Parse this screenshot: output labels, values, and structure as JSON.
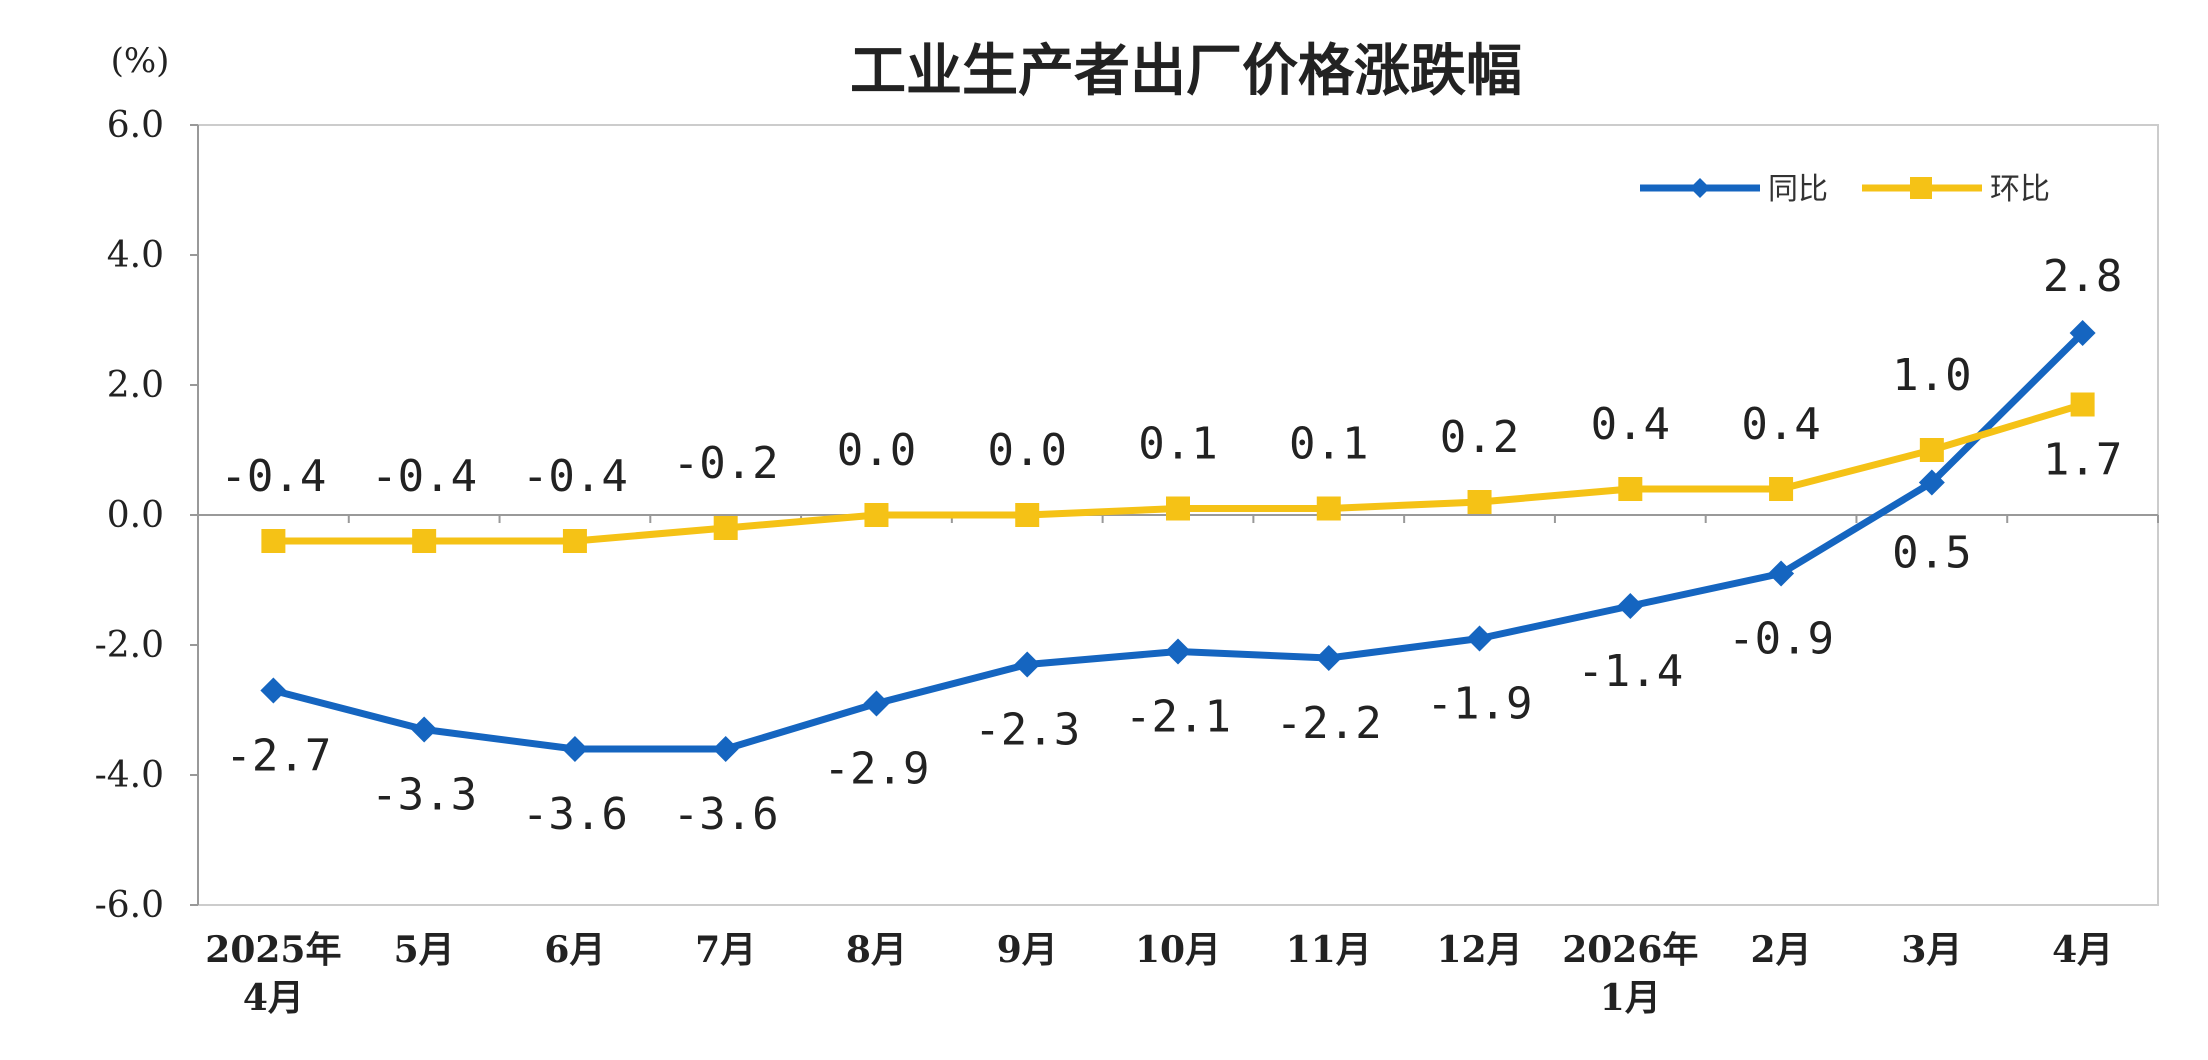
{
  "chart_data": {
    "type": "line",
    "title": "工业生产者出厂价格涨跌幅",
    "unit_label": "(%)",
    "ylim": [
      -6.0,
      6.0
    ],
    "yticks": [
      "6.0",
      "4.0",
      "2.0",
      "0.0",
      "-2.0",
      "-4.0",
      "-6.0"
    ],
    "ytick_values": [
      6,
      4,
      2,
      0,
      -2,
      -4,
      -6
    ],
    "categories": [
      [
        "2025年",
        "4月"
      ],
      [
        "5月"
      ],
      [
        "6月"
      ],
      [
        "7月"
      ],
      [
        "8月"
      ],
      [
        "9月"
      ],
      [
        "10月"
      ],
      [
        "11月"
      ],
      [
        "12月"
      ],
      [
        "2026年",
        "1月"
      ],
      [
        "2月"
      ],
      [
        "3月"
      ],
      [
        "4月"
      ]
    ],
    "legend_position": "top-right",
    "grid": false,
    "series": [
      {
        "name": "同比",
        "color": "#1565C0",
        "marker": "diamond",
        "values": [
          -2.7,
          -3.3,
          -3.6,
          -3.6,
          -2.9,
          -2.3,
          -2.1,
          -2.2,
          -1.9,
          -1.4,
          -0.9,
          0.5,
          2.8
        ],
        "labels": [
          "-2.7",
          "-3.3",
          "-3.6",
          "-3.6",
          "-2.9",
          "-2.3",
          "-2.1",
          "-2.2",
          "-1.9",
          "-1.4",
          "-0.9",
          "0.5",
          "2.8"
        ]
      },
      {
        "name": "环比",
        "color": "#F5C216",
        "marker": "square",
        "values": [
          -0.4,
          -0.4,
          -0.4,
          -0.2,
          0.0,
          0.0,
          0.1,
          0.1,
          0.2,
          0.4,
          0.4,
          1.0,
          1.7
        ],
        "labels": [
          "-0.4",
          "-0.4",
          "-0.4",
          "-0.2",
          "0.0",
          "0.0",
          "0.1",
          "0.1",
          "0.2",
          "0.4",
          "0.4",
          "1.0",
          "1.7"
        ]
      }
    ]
  }
}
